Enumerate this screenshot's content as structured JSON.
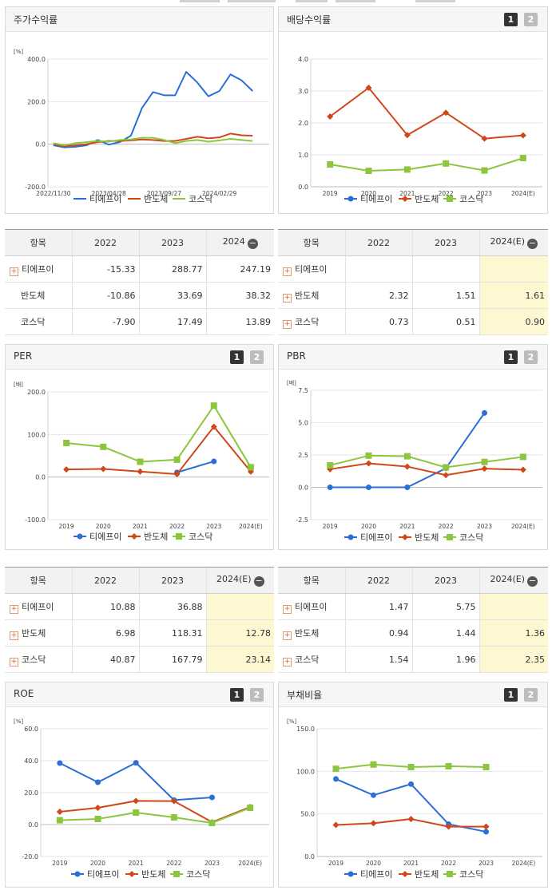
{
  "legend": [
    "티에프이",
    "반도체",
    "코스닥"
  ],
  "colors": {
    "s1": "#2a6fd6",
    "s2": "#d0481a",
    "s3": "#8cc63e"
  },
  "pager": [
    "1",
    "2"
  ],
  "panels": {
    "stock": {
      "title": "주가수익률"
    },
    "dividend": {
      "title": "배당수익률"
    },
    "per": {
      "title": "PER"
    },
    "pbr": {
      "title": "PBR"
    },
    "roe": {
      "title": "ROE"
    },
    "debt": {
      "title": "부채비율"
    }
  },
  "tables": {
    "stock": {
      "headers": [
        "항목",
        "2022",
        "2023",
        "2024"
      ],
      "rows": [
        {
          "name": "티에프이",
          "values": [
            "-15.33",
            "288.77",
            "247.19"
          ]
        },
        {
          "name": "반도체",
          "values": [
            "-10.86",
            "33.69",
            "38.32"
          ]
        },
        {
          "name": "코스닥",
          "values": [
            "-7.90",
            "17.49",
            "13.89"
          ]
        }
      ]
    },
    "dividend": {
      "headers": [
        "항목",
        "2022",
        "2023",
        "2024(E)"
      ],
      "rows": [
        {
          "name": "티에프이",
          "values": [
            "",
            "",
            ""
          ]
        },
        {
          "name": "반도체",
          "values": [
            "2.32",
            "1.51",
            "1.61"
          ]
        },
        {
          "name": "코스닥",
          "values": [
            "0.73",
            "0.51",
            "0.90"
          ]
        }
      ]
    },
    "per": {
      "headers": [
        "항목",
        "2022",
        "2023",
        "2024(E)"
      ],
      "rows": [
        {
          "name": "티에프이",
          "values": [
            "10.88",
            "36.88",
            ""
          ]
        },
        {
          "name": "반도체",
          "values": [
            "6.98",
            "118.31",
            "12.78"
          ]
        },
        {
          "name": "코스닥",
          "values": [
            "40.87",
            "167.79",
            "23.14"
          ]
        }
      ]
    },
    "pbr": {
      "headers": [
        "항목",
        "2022",
        "2023",
        "2024(E)"
      ],
      "rows": [
        {
          "name": "티에프이",
          "values": [
            "1.47",
            "5.75",
            ""
          ]
        },
        {
          "name": "반도체",
          "values": [
            "0.94",
            "1.44",
            "1.36"
          ]
        },
        {
          "name": "코스닥",
          "values": [
            "1.54",
            "1.96",
            "2.35"
          ]
        }
      ]
    }
  },
  "chart_data": [
    {
      "id": "stock",
      "type": "line",
      "title": "주가수익률",
      "ylabel": "[%]",
      "ylim": [
        -200,
        400
      ],
      "yticks": [
        "400.0",
        "200.0",
        "0.0",
        "-200.0"
      ],
      "xtick_labels": [
        "2022/11/30",
        "2023/04/28",
        "2023/09/27",
        "2024/02/29"
      ],
      "xtick_positions": [
        0,
        5,
        10,
        15
      ],
      "x_count": 20,
      "series": [
        {
          "name": "티에프이",
          "values": [
            -5,
            -15,
            -12,
            -5,
            20,
            -2,
            10,
            40,
            170,
            245,
            230,
            230,
            340,
            290,
            225,
            250,
            328,
            300,
            250,
            null
          ]
        },
        {
          "name": "반도체",
          "values": [
            0,
            -10,
            -5,
            0,
            10,
            15,
            15,
            18,
            22,
            20,
            15,
            15,
            25,
            35,
            28,
            32,
            50,
            42,
            40,
            null
          ]
        },
        {
          "name": "코스닥",
          "values": [
            5,
            -5,
            5,
            10,
            15,
            12,
            20,
            22,
            30,
            30,
            20,
            5,
            15,
            20,
            12,
            18,
            25,
            20,
            15,
            null
          ]
        }
      ]
    },
    {
      "id": "dividend",
      "type": "line",
      "title": "배당수익률",
      "ylim": [
        0,
        4
      ],
      "yticks": [
        "4.0",
        "3.0",
        "2.0",
        "1.0",
        "0.0"
      ],
      "categories": [
        "2019",
        "2020",
        "2021",
        "2022",
        "2023",
        "2024(E)"
      ],
      "series": [
        {
          "name": "티에프이",
          "values": [
            null,
            null,
            null,
            null,
            null,
            null
          ]
        },
        {
          "name": "반도체",
          "values": [
            2.2,
            3.1,
            1.62,
            2.32,
            1.51,
            1.61
          ]
        },
        {
          "name": "코스닥",
          "values": [
            0.7,
            0.5,
            0.54,
            0.73,
            0.51,
            0.9
          ]
        }
      ]
    },
    {
      "id": "per",
      "type": "line",
      "title": "PER",
      "ylabel": "[배]",
      "ylim": [
        -100,
        200
      ],
      "yticks": [
        "200.0",
        "100.0",
        "0.0",
        "-100.0"
      ],
      "categories": [
        "2019",
        "2020",
        "2021",
        "2022",
        "2023",
        "2024(E)"
      ],
      "series": [
        {
          "name": "티에프이",
          "values": [
            null,
            null,
            null,
            10.88,
            36.88,
            null
          ]
        },
        {
          "name": "반도체",
          "values": [
            18,
            19,
            13,
            6.98,
            118.31,
            12.78
          ]
        },
        {
          "name": "코스닥",
          "values": [
            80,
            71,
            36,
            40.87,
            167.79,
            23.14
          ]
        }
      ]
    },
    {
      "id": "pbr",
      "type": "line",
      "title": "PBR",
      "ylabel": "[배]",
      "ylim": [
        -2.5,
        7.5
      ],
      "yticks": [
        "7.5",
        "5.0",
        "2.5",
        "0.0",
        "-2.5"
      ],
      "categories": [
        "2019",
        "2020",
        "2021",
        "2022",
        "2023",
        "2024(E)"
      ],
      "series": [
        {
          "name": "티에프이",
          "values": [
            0,
            0,
            0,
            1.47,
            5.75,
            null
          ]
        },
        {
          "name": "반도체",
          "values": [
            1.4,
            1.85,
            1.6,
            0.94,
            1.44,
            1.36
          ]
        },
        {
          "name": "코스닥",
          "values": [
            1.7,
            2.45,
            2.4,
            1.54,
            1.96,
            2.35
          ]
        }
      ]
    },
    {
      "id": "roe",
      "type": "line",
      "title": "ROE",
      "ylabel": "[%]",
      "ylim": [
        -20,
        60
      ],
      "yticks": [
        "60.0",
        "40.0",
        "20.0",
        "0.0",
        "-20.0"
      ],
      "categories": [
        "2019",
        "2020",
        "2021",
        "2022",
        "2023",
        "2024(E)"
      ],
      "series": [
        {
          "name": "티에프이",
          "values": [
            38.5,
            26.5,
            38.7,
            15.3,
            17,
            null
          ]
        },
        {
          "name": "반도체",
          "values": [
            8,
            10.5,
            14.8,
            14.7,
            1.5,
            11
          ]
        },
        {
          "name": "코스닥",
          "values": [
            2.7,
            3.5,
            7.5,
            4.5,
            1,
            10.5
          ]
        }
      ]
    },
    {
      "id": "debt",
      "type": "line",
      "title": "부채비율",
      "ylabel": "[%]",
      "ylim": [
        0,
        150
      ],
      "yticks": [
        "150.0",
        "100.0",
        "50.0",
        "0.0"
      ],
      "categories": [
        "2019",
        "2020",
        "2021",
        "2022",
        "2023",
        "2024(E)"
      ],
      "series": [
        {
          "name": "티에프이",
          "values": [
            91,
            72,
            85,
            38,
            29,
            null
          ]
        },
        {
          "name": "반도체",
          "values": [
            37,
            39,
            44,
            35,
            35,
            null
          ]
        },
        {
          "name": "코스닥",
          "values": [
            103,
            108,
            105,
            106,
            105,
            null
          ]
        }
      ]
    }
  ]
}
